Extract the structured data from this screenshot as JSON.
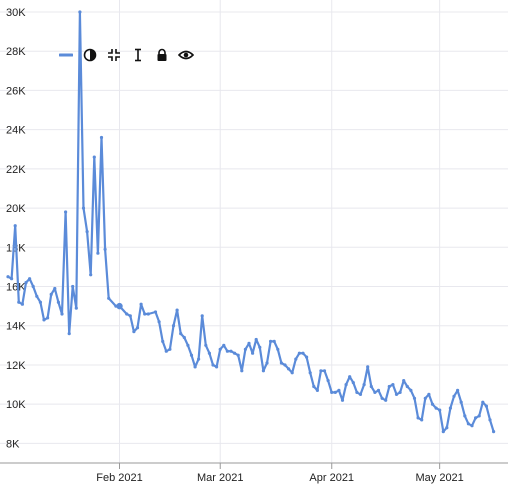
{
  "toolbar": {
    "icons": [
      "legend-line-icon",
      "contrast-icon",
      "collapse-icon",
      "text-cursor-icon",
      "lock-icon",
      "eye-icon"
    ]
  },
  "chart_data": {
    "type": "line",
    "title": "",
    "xlabel": "",
    "ylabel": "",
    "ylim": [
      7000,
      30000
    ],
    "xlim": [
      "2021-01-01",
      "2021-05-20"
    ],
    "grid": true,
    "y_ticks": [
      {
        "value": 8000,
        "label": "8K"
      },
      {
        "value": 10000,
        "label": "10K"
      },
      {
        "value": 12000,
        "label": "12K"
      },
      {
        "value": 14000,
        "label": "14K"
      },
      {
        "value": 16000,
        "label": "16K"
      },
      {
        "value": 18000,
        "label": "18K"
      },
      {
        "value": 20000,
        "label": "20K"
      },
      {
        "value": 22000,
        "label": "22K"
      },
      {
        "value": 24000,
        "label": "24K"
      },
      {
        "value": 26000,
        "label": "26K"
      },
      {
        "value": 28000,
        "label": "28K"
      },
      {
        "value": 30000,
        "label": "30K"
      }
    ],
    "x_ticks": [
      {
        "date": "2021-02-01",
        "label": "Feb 2021"
      },
      {
        "date": "2021-03-01",
        "label": "Mar 2021"
      },
      {
        "date": "2021-04-01",
        "label": "Apr 2021"
      },
      {
        "date": "2021-05-01",
        "label": "May 2021"
      }
    ],
    "line_color": "#5b8bd9",
    "highlighted_point": {
      "date": "2021-02-01",
      "y": 15000
    },
    "series": [
      {
        "points": [
          [
            "2021-01-01",
            16500
          ],
          [
            "2021-01-02",
            16400
          ],
          [
            "2021-01-03",
            19100
          ],
          [
            "2021-01-04",
            15200
          ],
          [
            "2021-01-05",
            15100
          ],
          [
            "2021-01-06",
            16200
          ],
          [
            "2021-01-07",
            16400
          ],
          [
            "2021-01-08",
            16000
          ],
          [
            "2021-01-09",
            15500
          ],
          [
            "2021-01-10",
            15200
          ],
          [
            "2021-01-11",
            14300
          ],
          [
            "2021-01-12",
            14400
          ],
          [
            "2021-01-13",
            15600
          ],
          [
            "2021-01-14",
            15900
          ],
          [
            "2021-01-15",
            15200
          ],
          [
            "2021-01-16",
            14600
          ],
          [
            "2021-01-17",
            19800
          ],
          [
            "2021-01-18",
            13600
          ],
          [
            "2021-01-19",
            16000
          ],
          [
            "2021-01-20",
            14900
          ],
          [
            "2021-01-21",
            30000
          ],
          [
            "2021-01-22",
            20000
          ],
          [
            "2021-01-23",
            18800
          ],
          [
            "2021-01-24",
            16600
          ],
          [
            "2021-01-25",
            22600
          ],
          [
            "2021-01-26",
            17700
          ],
          [
            "2021-01-27",
            23600
          ],
          [
            "2021-01-28",
            17900
          ],
          [
            "2021-01-29",
            15400
          ],
          [
            "2021-01-31",
            15000
          ],
          [
            "2021-02-01",
            15000
          ],
          [
            "2021-02-03",
            14600
          ],
          [
            "2021-02-04",
            14500
          ],
          [
            "2021-02-05",
            13700
          ],
          [
            "2021-02-06",
            13900
          ],
          [
            "2021-02-07",
            15100
          ],
          [
            "2021-02-08",
            14600
          ],
          [
            "2021-02-09",
            14600
          ],
          [
            "2021-02-11",
            14700
          ],
          [
            "2021-02-12",
            14200
          ],
          [
            "2021-02-13",
            13200
          ],
          [
            "2021-02-14",
            12700
          ],
          [
            "2021-02-15",
            12800
          ],
          [
            "2021-02-16",
            14000
          ],
          [
            "2021-02-17",
            14800
          ],
          [
            "2021-02-18",
            13600
          ],
          [
            "2021-02-19",
            13400
          ],
          [
            "2021-02-20",
            13000
          ],
          [
            "2021-02-21",
            12500
          ],
          [
            "2021-02-22",
            11900
          ],
          [
            "2021-02-23",
            12300
          ],
          [
            "2021-02-24",
            14500
          ],
          [
            "2021-02-25",
            13000
          ],
          [
            "2021-02-26",
            12600
          ],
          [
            "2021-02-27",
            12000
          ],
          [
            "2021-02-28",
            11900
          ],
          [
            "2021-03-01",
            12800
          ],
          [
            "2021-03-02",
            13000
          ],
          [
            "2021-03-03",
            12700
          ],
          [
            "2021-03-04",
            12700
          ],
          [
            "2021-03-05",
            12600
          ],
          [
            "2021-03-06",
            12500
          ],
          [
            "2021-03-07",
            11700
          ],
          [
            "2021-03-08",
            12800
          ],
          [
            "2021-03-09",
            13100
          ],
          [
            "2021-03-10",
            12600
          ],
          [
            "2021-03-11",
            13300
          ],
          [
            "2021-03-12",
            12900
          ],
          [
            "2021-03-13",
            11700
          ],
          [
            "2021-03-14",
            12100
          ],
          [
            "2021-03-15",
            13200
          ],
          [
            "2021-03-16",
            13200
          ],
          [
            "2021-03-17",
            12800
          ],
          [
            "2021-03-18",
            12100
          ],
          [
            "2021-03-19",
            12000
          ],
          [
            "2021-03-20",
            11800
          ],
          [
            "2021-03-21",
            11600
          ],
          [
            "2021-03-22",
            12300
          ],
          [
            "2021-03-23",
            12600
          ],
          [
            "2021-03-24",
            12600
          ],
          [
            "2021-03-25",
            12400
          ],
          [
            "2021-03-26",
            11600
          ],
          [
            "2021-03-27",
            10900
          ],
          [
            "2021-03-28",
            10700
          ],
          [
            "2021-03-29",
            11700
          ],
          [
            "2021-03-30",
            11700
          ],
          [
            "2021-03-31",
            11200
          ],
          [
            "2021-04-01",
            10600
          ],
          [
            "2021-04-02",
            10600
          ],
          [
            "2021-04-03",
            10700
          ],
          [
            "2021-04-04",
            10200
          ],
          [
            "2021-04-05",
            11000
          ],
          [
            "2021-04-06",
            11400
          ],
          [
            "2021-04-07",
            11100
          ],
          [
            "2021-04-08",
            10600
          ],
          [
            "2021-04-09",
            10500
          ],
          [
            "2021-04-10",
            11000
          ],
          [
            "2021-04-11",
            11900
          ],
          [
            "2021-04-12",
            10900
          ],
          [
            "2021-04-13",
            10600
          ],
          [
            "2021-04-14",
            10700
          ],
          [
            "2021-04-15",
            10300
          ],
          [
            "2021-04-16",
            10200
          ],
          [
            "2021-04-17",
            10900
          ],
          [
            "2021-04-18",
            11000
          ],
          [
            "2021-04-19",
            10500
          ],
          [
            "2021-04-20",
            10600
          ],
          [
            "2021-04-21",
            11200
          ],
          [
            "2021-04-22",
            10900
          ],
          [
            "2021-04-23",
            10700
          ],
          [
            "2021-04-24",
            10300
          ],
          [
            "2021-04-25",
            9300
          ],
          [
            "2021-04-26",
            9200
          ],
          [
            "2021-04-27",
            10300
          ],
          [
            "2021-04-28",
            10500
          ],
          [
            "2021-04-29",
            10000
          ],
          [
            "2021-04-30",
            9800
          ],
          [
            "2021-05-01",
            9700
          ],
          [
            "2021-05-02",
            8600
          ],
          [
            "2021-05-03",
            8800
          ],
          [
            "2021-05-04",
            9800
          ],
          [
            "2021-05-05",
            10400
          ],
          [
            "2021-05-06",
            10700
          ],
          [
            "2021-05-07",
            10100
          ],
          [
            "2021-05-08",
            9400
          ],
          [
            "2021-05-09",
            9000
          ],
          [
            "2021-05-10",
            8900
          ],
          [
            "2021-05-11",
            9300
          ],
          [
            "2021-05-12",
            9400
          ],
          [
            "2021-05-13",
            10100
          ],
          [
            "2021-05-14",
            9900
          ],
          [
            "2021-05-15",
            9200
          ],
          [
            "2021-05-16",
            8600
          ]
        ]
      }
    ]
  }
}
